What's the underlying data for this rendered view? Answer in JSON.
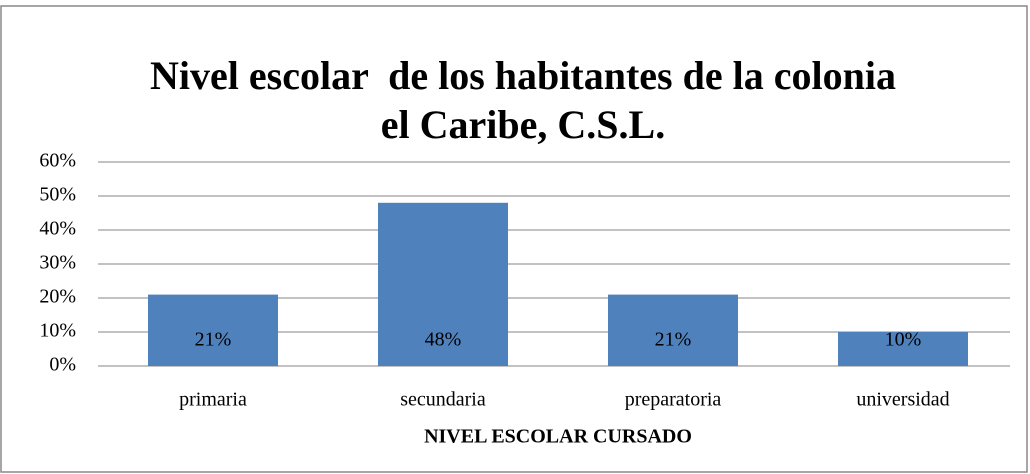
{
  "chart_data": {
    "type": "bar",
    "title": [
      "Nivel escolar  de los habitantes de la colonia",
      "el Caribe, C.S.L."
    ],
    "x_label": "NIVEL ESCOLAR CURSADO",
    "categories": [
      "primaria",
      "secundaria",
      "preparatoria",
      "universidad"
    ],
    "values": [
      21,
      48,
      21,
      10
    ],
    "value_labels": [
      "21%",
      "48%",
      "21%",
      "10%"
    ],
    "color": "#4f81bd",
    "ylim": [
      0,
      60
    ],
    "yticks": [
      {
        "value": 0,
        "label": "0%"
      },
      {
        "value": 10,
        "label": "10%"
      },
      {
        "value": 20,
        "label": "20%"
      },
      {
        "value": 30,
        "label": "30%"
      },
      {
        "value": 40,
        "label": "40%"
      },
      {
        "value": 50,
        "label": "50%"
      },
      {
        "value": 60,
        "label": "60%"
      }
    ],
    "grid": true
  }
}
